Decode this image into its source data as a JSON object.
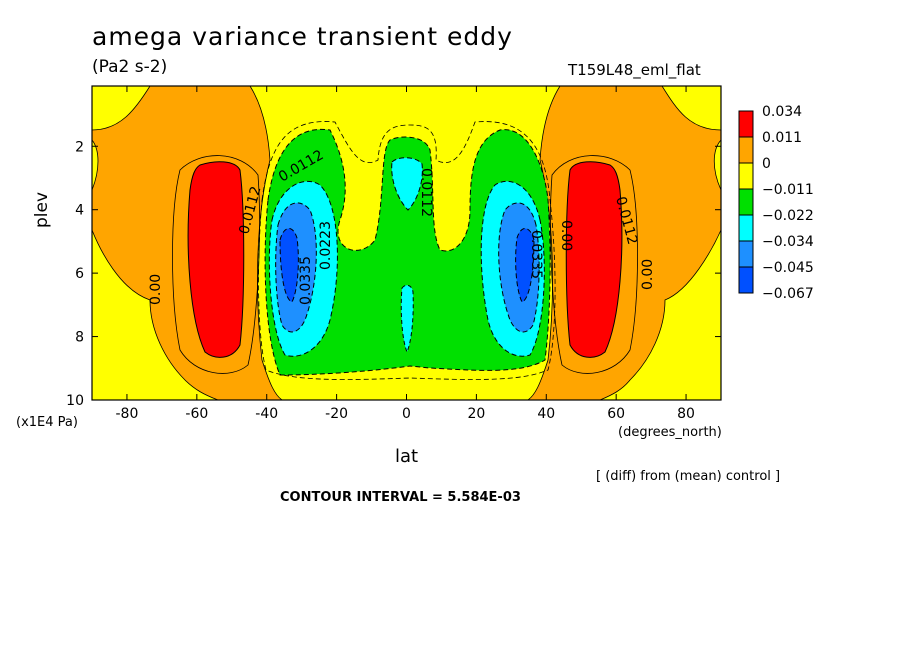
{
  "chart_data": {
    "type": "contour",
    "title": "amega variance transient eddy",
    "units": "(Pa2 s-2)",
    "run_label": "T159L48_eml_flat",
    "xlabel": "lat",
    "xunits": "(degrees_north)",
    "ylabel": "plev",
    "yunits": "(x1E4 Pa)",
    "xlim": [
      -90,
      90
    ],
    "ylim": [
      10,
      0.1
    ],
    "x_ticks": [
      -80,
      -60,
      -40,
      -20,
      0,
      20,
      40,
      60,
      80
    ],
    "y_ticks": [
      2,
      4,
      6,
      8,
      10
    ],
    "colorbar_levels": [
      "0.034",
      "0.011",
      "0",
      "−0.011",
      "−0.022",
      "−0.034",
      "−0.045",
      "−0.067"
    ],
    "colorbar_colors": [
      "#ff0000",
      "#ffa500",
      "#ffff00",
      "#00e000",
      "#00ffff",
      "#1e90ff",
      "#0050ff"
    ],
    "contour_labels": [
      "0.0112",
      "0.00",
      "0.0223",
      "0.0335",
      "0.0112",
      "0.0112",
      "0.00",
      "0.0335",
      "0.0112",
      "0.00"
    ],
    "footer_note": "[ (diff) from (mean) control ]",
    "contour_interval": "CONTOUR INTERVAL = 5.584E-03"
  }
}
